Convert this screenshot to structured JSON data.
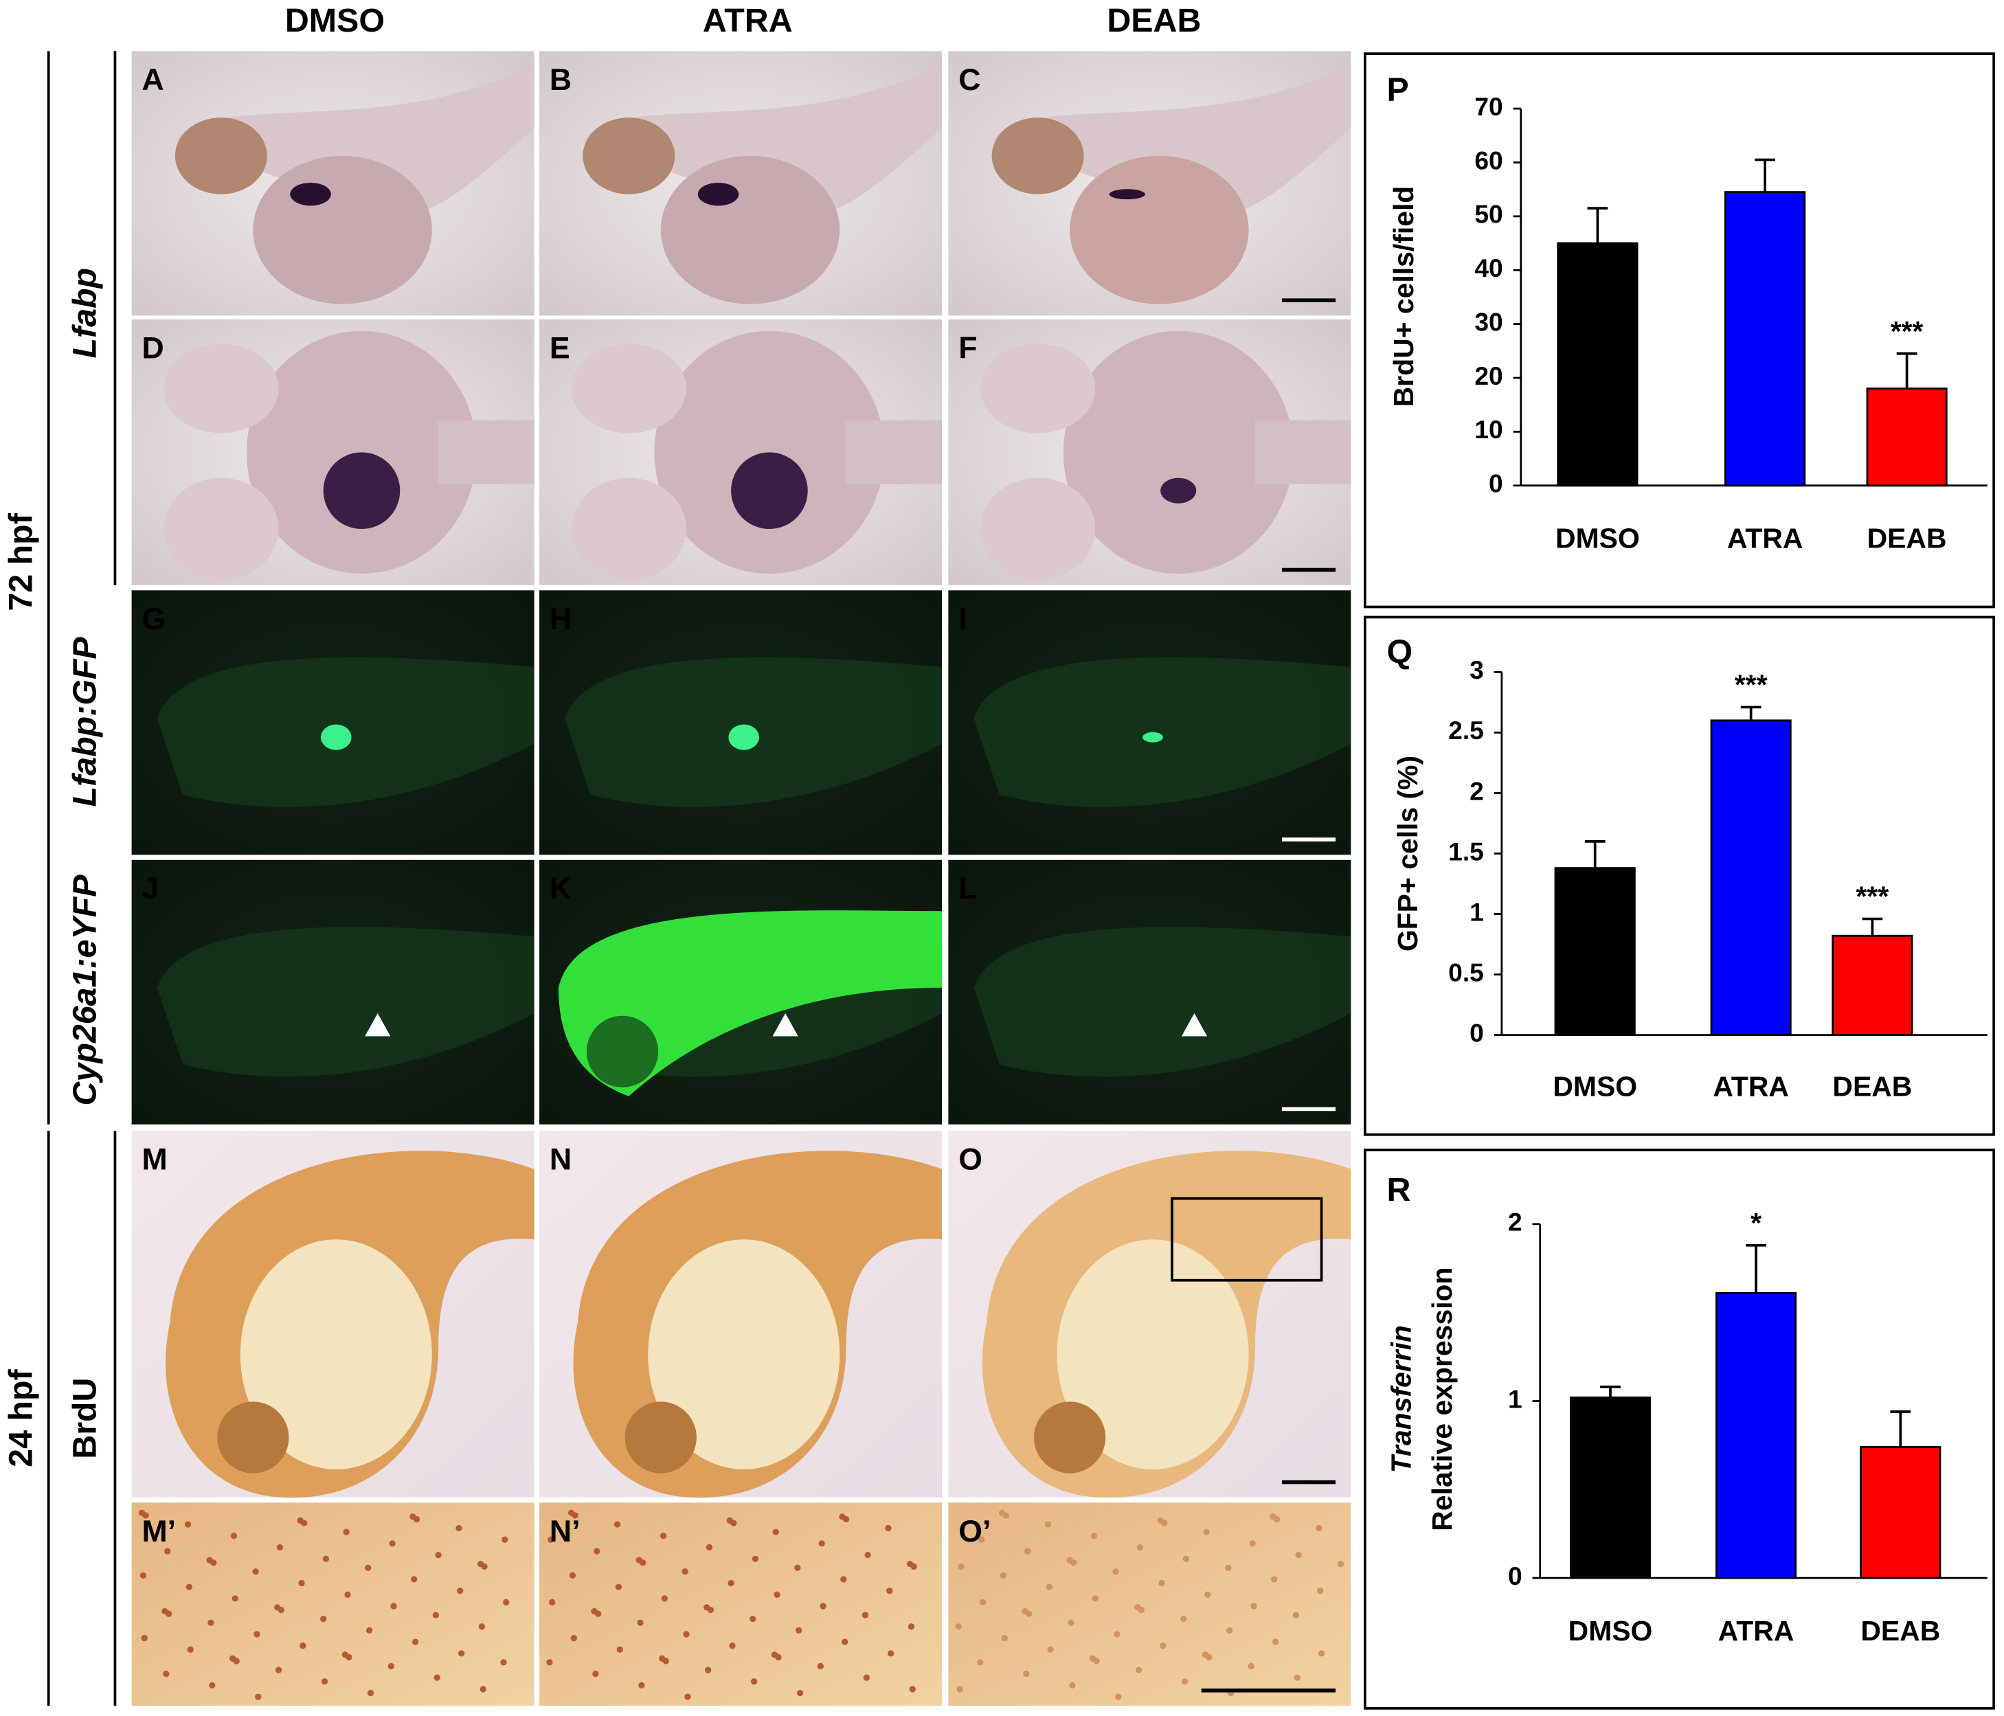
{
  "columns": [
    "DMSO",
    "ATRA",
    "DEAB"
  ],
  "row_groups": [
    {
      "label": "72 hpf",
      "markers": [
        "Lfabp",
        "Lfabp:GFP",
        "Cyp26a1:eYFP"
      ]
    },
    {
      "label": "24 hpf",
      "markers": [
        "BrdU"
      ]
    }
  ],
  "panels": [
    "A",
    "B",
    "C",
    "D",
    "E",
    "F",
    "G",
    "H",
    "I",
    "J",
    "K",
    "L",
    "M",
    "N",
    "O",
    "M’",
    "N’",
    "O’"
  ],
  "chart_data": [
    {
      "type": "bar",
      "panel": "P",
      "ylabel": [
        "BrdU+ cells/field"
      ],
      "categories": [
        "DMSO",
        "ATRA",
        "DEAB"
      ],
      "values": [
        45,
        54.5,
        18
      ],
      "errors": [
        6.5,
        6,
        6.5
      ],
      "colors": [
        "#000000",
        "#0000ff",
        "#ff0000"
      ],
      "ylim": [
        0,
        70
      ],
      "yticks": [
        0,
        10,
        20,
        30,
        40,
        50,
        60,
        70
      ],
      "annotations": [
        {
          "text": "***",
          "category": "DEAB"
        }
      ]
    },
    {
      "type": "bar",
      "panel": "Q",
      "ylabel": [
        "GFP+ cells (%)"
      ],
      "categories": [
        "DMSO",
        "ATRA",
        "DEAB"
      ],
      "values": [
        1.38,
        2.6,
        0.82
      ],
      "errors": [
        0.22,
        0.11,
        0.14
      ],
      "colors": [
        "#000000",
        "#0000ff",
        "#ff0000"
      ],
      "ylim": [
        0,
        3
      ],
      "yticks": [
        0,
        0.5,
        1,
        1.5,
        2,
        2.5,
        3
      ],
      "annotations": [
        {
          "text": "***",
          "category": "ATRA"
        },
        {
          "text": "***",
          "category": "DEAB"
        }
      ]
    },
    {
      "type": "bar",
      "panel": "R",
      "ylabel": [
        "Transferrin",
        "Relative expression"
      ],
      "categories": [
        "DMSO",
        "ATRA",
        "DEAB"
      ],
      "values": [
        1.02,
        1.61,
        0.74
      ],
      "errors": [
        0.06,
        0.27,
        0.2
      ],
      "colors": [
        "#000000",
        "#0000ff",
        "#ff0000"
      ],
      "ylim": [
        0,
        2
      ],
      "yticks": [
        0,
        1,
        2
      ],
      "annotations": [
        {
          "text": "*",
          "category": "ATRA"
        }
      ]
    }
  ]
}
